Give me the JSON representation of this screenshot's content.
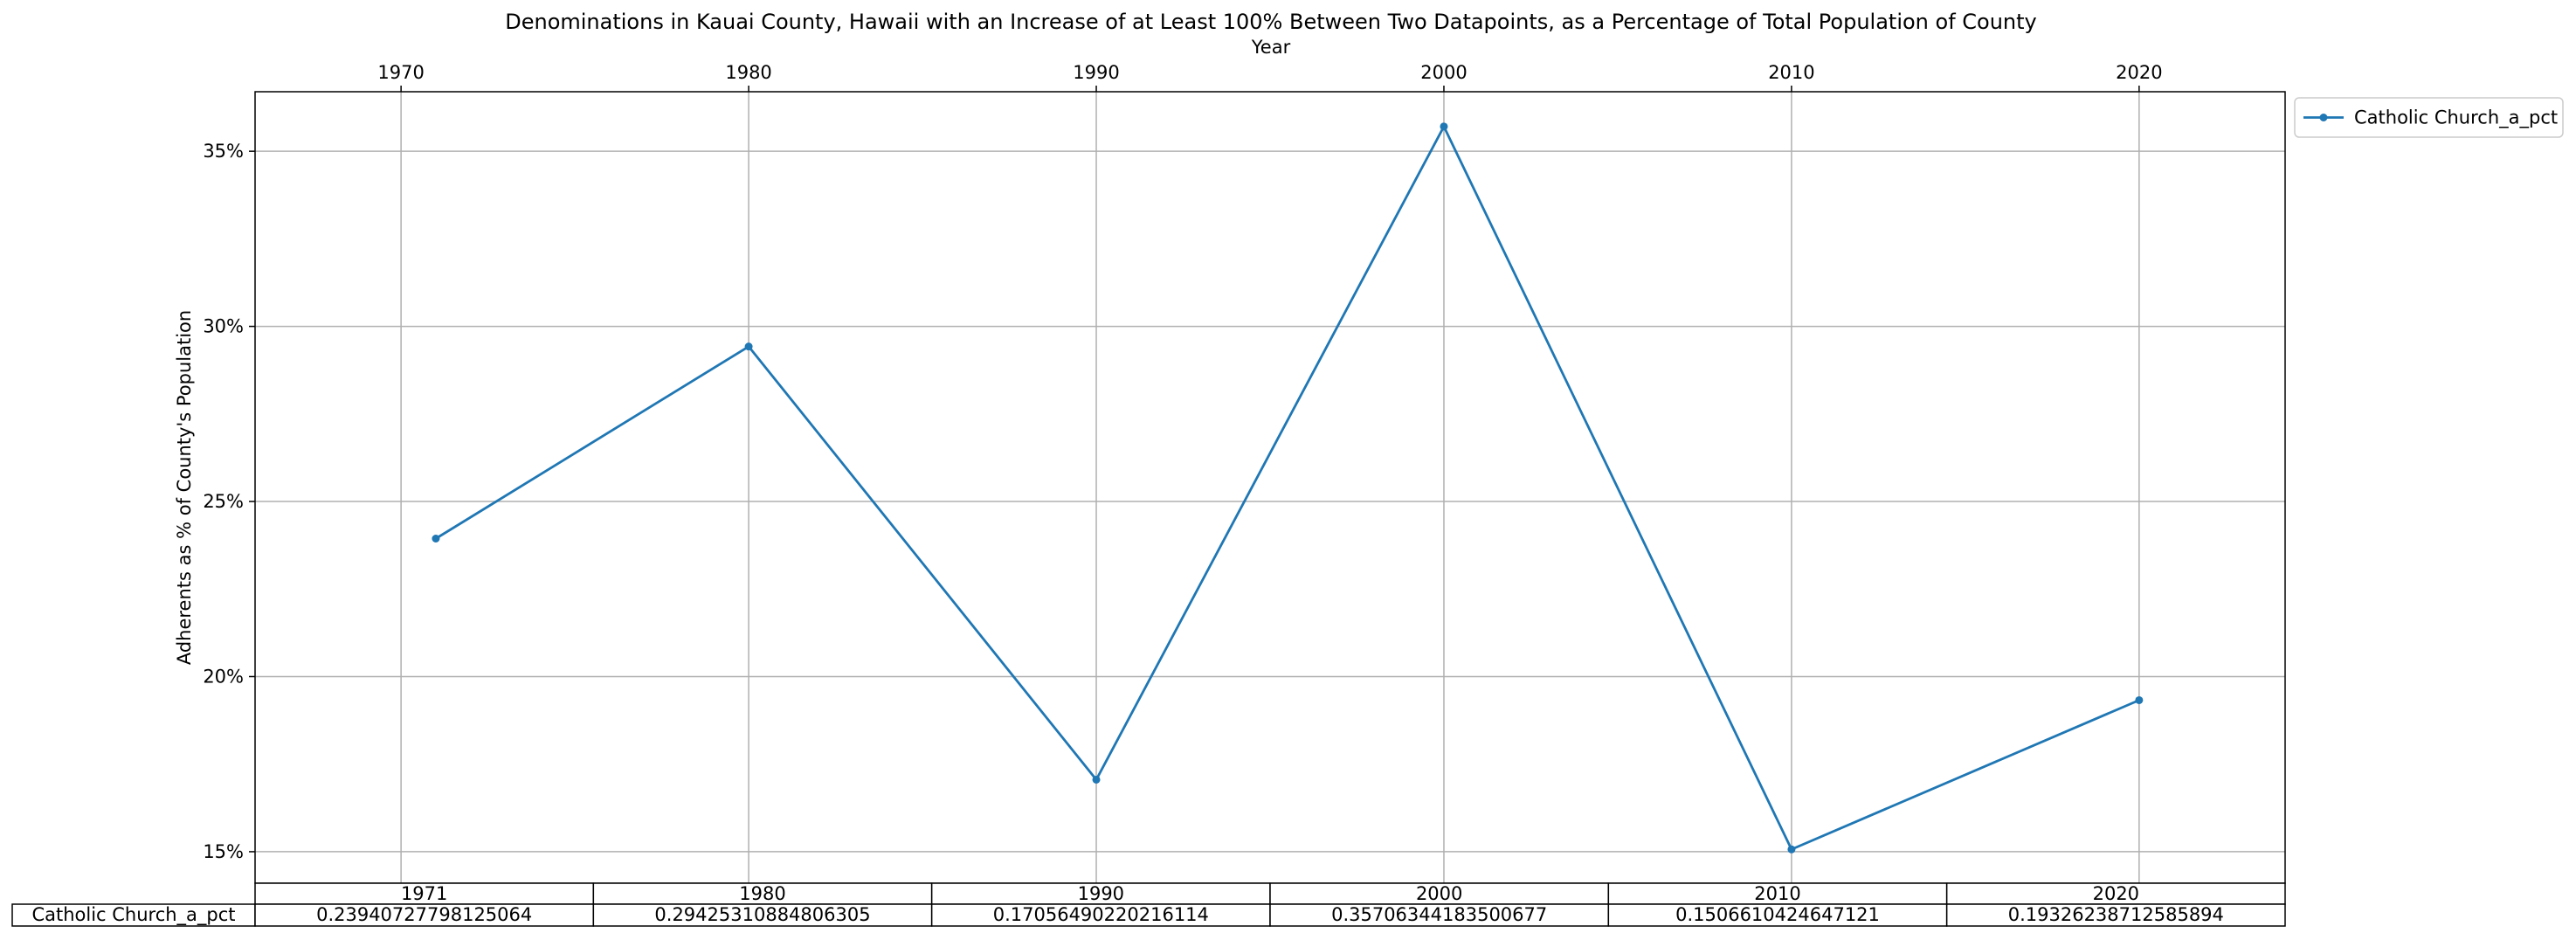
{
  "chart_data": {
    "type": "line",
    "title": "Denominations in Kauai County, Hawaii with an Increase of at Least 100% Between Two Datapoints, as a Percentage of Total Population of County",
    "xlabel": "Year",
    "ylabel": "Adherents as % of County's Population",
    "xlim": [
      1965.8,
      2024.2
    ],
    "ylim": [
      0.141,
      0.367
    ],
    "x_ticks": [
      1970,
      1980,
      1990,
      2000,
      2010,
      2020
    ],
    "x_tick_labels": [
      "1970",
      "1980",
      "1990",
      "2000",
      "2010",
      "2020"
    ],
    "y_ticks": [
      0.15,
      0.2,
      0.25,
      0.3,
      0.35
    ],
    "y_tick_labels": [
      "15%",
      "20%",
      "25%",
      "30%",
      "35%"
    ],
    "x_axis_position": "top",
    "grid": true,
    "legend_position": "outside-top-right",
    "series": [
      {
        "name": "Catholic Church_a_pct",
        "color": "#1f77b4",
        "x": [
          1971,
          1980,
          1990,
          2000,
          2010,
          2020
        ],
        "values": [
          0.23940727798125064,
          0.29425310884806305,
          0.17056490220216114,
          0.35706344183500677,
          0.1506610424647121,
          0.19326238712585894
        ]
      }
    ],
    "table": {
      "columns": [
        "1971",
        "1980",
        "1990",
        "2000",
        "2010",
        "2020"
      ],
      "rows": [
        {
          "label": "Catholic Church_a_pct",
          "cells": [
            "0.23940727798125064",
            "0.29425310884806305",
            "0.17056490220216114",
            "0.35706344183500677",
            "0.1506610424647121",
            "0.19326238712585894"
          ]
        }
      ]
    }
  }
}
